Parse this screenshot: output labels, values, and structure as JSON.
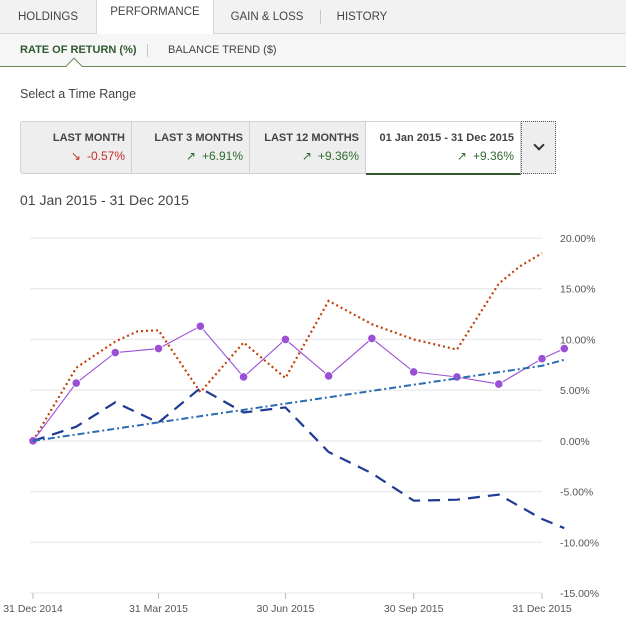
{
  "tabs": [
    "HOLDINGS",
    "PERFORMANCE",
    "GAIN & LOSS",
    "HISTORY"
  ],
  "active_tab": "PERFORMANCE",
  "subtabs": [
    "RATE OF RETURN (%)",
    "BALANCE TREND ($)"
  ],
  "active_subtab": "RATE OF RETURN (%)",
  "select_label": "Select a Time Range",
  "ranges": [
    {
      "label": "LAST MONTH",
      "value": "-0.57%",
      "direction": "down"
    },
    {
      "label": "LAST 3 MONTHS",
      "value": "+6.91%",
      "direction": "up"
    },
    {
      "label": "LAST 12 MONTHS",
      "value": "+9.36%",
      "direction": "up"
    },
    {
      "label": "01 Jan 2015 - 31 Dec 2015",
      "value": "+9.36%",
      "direction": "up"
    }
  ],
  "selected_range": "01 Jan 2015 - 31 Dec 2015",
  "colors": {
    "accent": "#2f5a2f",
    "negative": "#c0302a",
    "positive": "#2d6b2d"
  },
  "icons": {
    "down": "arrow-down-right",
    "up": "arrow-up-right",
    "dropdown": "chevron-down"
  },
  "period_title": "01 Jan 2015 - 31 Dec 2015",
  "chart_data": {
    "type": "line",
    "title": "",
    "xlabel": "",
    "ylabel": "",
    "x": [
      "2014-12-31",
      "2015-01-16",
      "2015-01-31",
      "2015-02-15",
      "2015-02-28",
      "2015-03-16",
      "2015-03-31",
      "2015-04-15",
      "2015-04-30",
      "2015-05-15",
      "2015-05-31",
      "2015-06-15",
      "2015-06-30",
      "2015-07-15",
      "2015-07-31",
      "2015-08-15",
      "2015-08-31",
      "2015-09-15",
      "2015-09-30",
      "2015-10-15",
      "2015-10-31",
      "2015-11-15",
      "2015-11-30",
      "2015-12-15",
      "2015-12-31"
    ],
    "x_ticks": [
      "31 Dec 2014",
      "31 Mar 2015",
      "30 Jun 2015",
      "30 Sep 2015",
      "31 Dec 2015"
    ],
    "y_ticks": [
      "20.00%",
      "15.00%",
      "10.00%",
      "5.00%",
      "0.00%",
      "-5.00%",
      "-10.00%",
      "-15.00%"
    ],
    "ylim": [
      -15,
      20
    ],
    "y_axis_side": "right",
    "grid": "horizontal",
    "legend": "none",
    "series": [
      {
        "style": "dotted",
        "color": "#c2410c",
        "x": [
          "2014-12-31",
          "2015-01-31",
          "2015-02-28",
          "2015-03-16",
          "2015-03-31",
          "2015-04-30",
          "2015-05-31",
          "2015-06-30",
          "2015-07-31",
          "2015-08-31",
          "2015-09-30",
          "2015-10-31",
          "2015-11-30",
          "2015-12-15",
          "2015-12-31"
        ],
        "values": [
          0.0,
          7.2,
          9.8,
          10.8,
          10.9,
          4.8,
          9.7,
          6.2,
          13.8,
          11.5,
          10.0,
          9.0,
          15.5,
          17.2,
          18.5
        ]
      },
      {
        "style": "solid-markers",
        "color": "#9a4fd6",
        "x": [
          "2014-12-31",
          "2015-01-31",
          "2015-02-28",
          "2015-03-31",
          "2015-04-30",
          "2015-05-31",
          "2015-06-30",
          "2015-07-31",
          "2015-08-31",
          "2015-09-30",
          "2015-10-31",
          "2015-11-30",
          "2015-12-31",
          "2016-01-16"
        ],
        "values": [
          0.0,
          5.7,
          8.7,
          9.1,
          11.3,
          6.3,
          10.0,
          6.4,
          10.1,
          6.8,
          6.3,
          5.6,
          8.1,
          9.1
        ]
      },
      {
        "style": "dashed",
        "color": "#1f3a93",
        "x": [
          "2014-12-31",
          "2015-01-31",
          "2015-02-28",
          "2015-03-31",
          "2015-04-30",
          "2015-05-31",
          "2015-06-30",
          "2015-07-31",
          "2015-08-31",
          "2015-09-30",
          "2015-10-31",
          "2015-11-30",
          "2015-12-31",
          "2016-01-16"
        ],
        "values": [
          0.0,
          1.4,
          3.8,
          1.8,
          5.2,
          2.8,
          3.3,
          -1.1,
          -3.2,
          -5.9,
          -5.8,
          -5.3,
          -7.7,
          -8.6
        ]
      },
      {
        "style": "dash-dot",
        "color": "#2b6cb0",
        "x": [
          "2014-12-31",
          "2015-12-31",
          "2016-01-16"
        ],
        "values": [
          0.0,
          7.4,
          8.0
        ]
      }
    ]
  }
}
